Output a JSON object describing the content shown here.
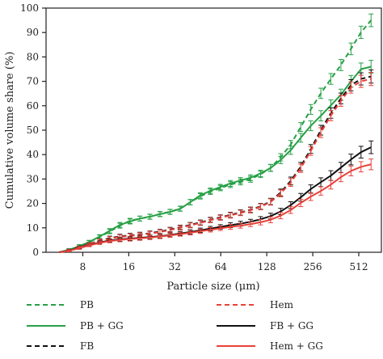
{
  "chart_data": {
    "type": "line",
    "title": "",
    "xlabel": "Particle size (μm)",
    "ylabel": "Cumulative volume share (%)",
    "x_scale": "log2",
    "xlim": [
      4.6,
      720
    ],
    "ylim": [
      0,
      100
    ],
    "x_ticks": [
      8,
      16,
      32,
      64,
      128,
      256,
      512
    ],
    "x_tick_labels": [
      "8",
      "16",
      "32",
      "64",
      "128",
      "256",
      "512"
    ],
    "y_ticks": [
      0,
      10,
      20,
      30,
      40,
      50,
      60,
      70,
      80,
      90,
      100
    ],
    "y_tick_labels": [
      "0",
      "10",
      "20",
      "30",
      "40",
      "50",
      "60",
      "70",
      "80",
      "90",
      "100"
    ],
    "grid": false,
    "legend_position": "bottom",
    "x": [
      5.6,
      6.5,
      7.6,
      8.8,
      10.3,
      12.0,
      14.0,
      16.3,
      18.9,
      22.0,
      25.6,
      29.8,
      34.7,
      40.4,
      47.0,
      54.7,
      63.6,
      74.0,
      86.1,
      100.2,
      116.6,
      135.6,
      157.8,
      183.6,
      213.6,
      248.5,
      289.2,
      336.4,
      391.4,
      455.4,
      529.8,
      616.3
    ],
    "series": [
      {
        "name": "PB",
        "color": "#27a046",
        "dash": "dashed",
        "values": [
          0.0,
          1.0,
          2.5,
          4.1,
          6.2,
          8.5,
          10.9,
          12.9,
          13.8,
          14.5,
          15.7,
          16.6,
          17.9,
          20.5,
          22.9,
          24.8,
          26.3,
          27.7,
          28.8,
          29.9,
          31.9,
          34.6,
          38.9,
          44.1,
          51.3,
          58.5,
          65.1,
          71.0,
          76.7,
          83.3,
          90.1,
          95.0
        ],
        "error": [
          0.4,
          0.5,
          0.6,
          0.7,
          0.8,
          0.9,
          1.0,
          1.0,
          1.0,
          1.0,
          1.0,
          1.0,
          1.0,
          1.1,
          1.1,
          1.1,
          1.1,
          1.2,
          1.2,
          1.2,
          1.3,
          1.4,
          1.5,
          1.7,
          1.8,
          2.0,
          2.1,
          2.2,
          2.3,
          2.4,
          2.5,
          2.6
        ]
      },
      {
        "name": "PB + GG",
        "color": "#27a046",
        "dash": "solid",
        "values": [
          0.0,
          1.0,
          2.5,
          4.2,
          6.4,
          8.8,
          11.2,
          12.6,
          13.8,
          14.6,
          15.6,
          16.5,
          17.8,
          20.5,
          23.3,
          25.2,
          26.7,
          28.2,
          29.4,
          30.5,
          32.3,
          34.5,
          37.8,
          41.8,
          46.9,
          51.8,
          55.9,
          60.2,
          64.5,
          70.0,
          75.0,
          76.0
        ],
        "error": [
          0.4,
          0.5,
          0.6,
          0.7,
          0.8,
          0.9,
          1.0,
          1.0,
          1.0,
          1.0,
          1.0,
          1.0,
          1.0,
          1.1,
          1.1,
          1.1,
          1.1,
          1.2,
          1.2,
          1.2,
          1.3,
          1.4,
          1.5,
          1.7,
          1.8,
          2.0,
          2.1,
          2.2,
          2.3,
          2.4,
          2.5,
          2.6
        ]
      },
      {
        "name": "FB",
        "color": "#111111",
        "dash": "dashed",
        "values": [
          0.0,
          0.8,
          2.1,
          3.4,
          4.8,
          5.8,
          6.5,
          6.9,
          7.3,
          7.8,
          8.5,
          9.3,
          10.2,
          11.2,
          12.2,
          13.3,
          14.3,
          15.3,
          16.3,
          17.4,
          18.8,
          20.8,
          24.5,
          29.2,
          35.1,
          42.3,
          50.0,
          57.0,
          63.0,
          68.4,
          71.0,
          72.0
        ],
        "error": [
          0.3,
          0.4,
          0.5,
          0.6,
          0.7,
          0.8,
          0.9,
          0.9,
          0.9,
          0.9,
          0.9,
          0.9,
          0.9,
          1.0,
          1.0,
          1.0,
          1.0,
          1.1,
          1.1,
          1.1,
          1.2,
          1.3,
          1.4,
          1.6,
          1.7,
          1.8,
          2.0,
          2.1,
          2.2,
          2.3,
          2.5,
          2.7
        ]
      },
      {
        "name": "Hem",
        "color": "#e8423a",
        "dash": "dashed",
        "values": [
          0.0,
          0.8,
          2.0,
          3.3,
          4.7,
          5.6,
          6.3,
          6.7,
          7.1,
          7.6,
          8.3,
          9.1,
          10.0,
          11.0,
          12.0,
          13.1,
          14.1,
          15.1,
          16.1,
          17.2,
          18.6,
          20.6,
          24.1,
          28.6,
          34.4,
          41.5,
          49.0,
          56.0,
          62.0,
          67.5,
          70.0,
          71.0
        ],
        "error": [
          0.3,
          0.4,
          0.5,
          0.6,
          0.7,
          0.8,
          0.9,
          0.9,
          0.9,
          0.9,
          0.9,
          0.9,
          0.9,
          1.0,
          1.0,
          1.0,
          1.0,
          1.1,
          1.1,
          1.1,
          1.2,
          1.3,
          1.4,
          1.6,
          1.7,
          1.8,
          2.0,
          2.1,
          2.2,
          2.3,
          2.5,
          2.7
        ]
      },
      {
        "name": "FB + GG",
        "color": "#111111",
        "dash": "solid",
        "values": [
          0.0,
          0.7,
          1.8,
          2.9,
          4.0,
          4.8,
          5.3,
          5.6,
          5.9,
          6.2,
          6.6,
          7.1,
          7.7,
          8.3,
          9.0,
          9.7,
          10.4,
          11.1,
          11.7,
          12.5,
          13.5,
          14.8,
          16.7,
          19.3,
          22.5,
          25.9,
          28.7,
          31.4,
          34.7,
          38.0,
          41.0,
          43.0
        ],
        "error": [
          0.3,
          0.4,
          0.5,
          0.5,
          0.6,
          0.7,
          0.8,
          0.8,
          0.8,
          0.8,
          0.8,
          0.8,
          0.8,
          0.9,
          0.9,
          0.9,
          0.9,
          1.0,
          1.0,
          1.0,
          1.1,
          1.2,
          1.3,
          1.4,
          1.6,
          1.7,
          1.8,
          2.0,
          2.1,
          2.2,
          2.4,
          2.6
        ]
      },
      {
        "name": "Hem + GG",
        "color": "#e8423a",
        "dash": "solid",
        "values": [
          0.0,
          0.6,
          1.7,
          2.8,
          3.8,
          4.6,
          5.1,
          5.4,
          5.7,
          6.0,
          6.4,
          6.9,
          7.4,
          8.0,
          8.6,
          9.2,
          9.8,
          10.4,
          10.9,
          11.5,
          12.3,
          13.3,
          15.0,
          17.3,
          20.2,
          22.8,
          25.1,
          27.7,
          30.8,
          33.3,
          35.0,
          36.0
        ],
        "error": [
          0.3,
          0.4,
          0.5,
          0.5,
          0.6,
          0.7,
          0.8,
          0.8,
          0.8,
          0.8,
          0.8,
          0.8,
          0.8,
          0.9,
          0.9,
          0.9,
          0.9,
          1.0,
          1.0,
          1.0,
          1.1,
          1.2,
          1.3,
          1.4,
          1.5,
          1.6,
          1.7,
          1.8,
          1.9,
          2.0,
          2.1,
          2.2
        ]
      }
    ],
    "legend_order": [
      0,
      3,
      1,
      4,
      2,
      5
    ]
  }
}
